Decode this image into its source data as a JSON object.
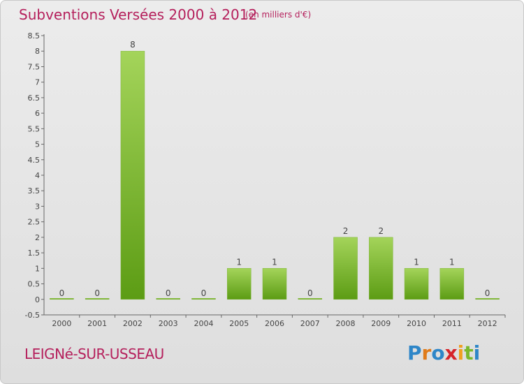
{
  "chart_data": {
    "type": "bar",
    "title": "Subventions Versées 2000 à 2012",
    "unit": "(en milliers d'€)",
    "categories": [
      "2000",
      "2001",
      "2002",
      "2003",
      "2004",
      "2005",
      "2006",
      "2007",
      "2008",
      "2009",
      "2010",
      "2011",
      "2012"
    ],
    "values": [
      0,
      0,
      8,
      0,
      0,
      1,
      1,
      0,
      2,
      2,
      1,
      1,
      0
    ],
    "data_labels": [
      "0",
      "0",
      "8",
      "0",
      "0",
      "1",
      "1",
      "0",
      "2",
      "2",
      "1",
      "1",
      "0"
    ],
    "y_ticks": [
      "-0.5",
      "0",
      "0.5",
      "1",
      "1.5",
      "2",
      "2.5",
      "3",
      "3.5",
      "4",
      "4.5",
      "5",
      "5.5",
      "6",
      "6.5",
      "7",
      "7.5",
      "8",
      "8.5"
    ],
    "ylim": [
      -0.5,
      8.5
    ],
    "grid": false,
    "bar_color_top": "#a4d45a",
    "bar_color_bottom": "#5c9c14"
  },
  "commune": "LEIGNé-SUR-USSEAU",
  "logo": {
    "letters": [
      "P",
      "r",
      "o",
      "x",
      "i",
      "t",
      "i"
    ],
    "colors": [
      "#2e86c8",
      "#e07b1a",
      "#2e86c8",
      "#d6242a",
      "#f0a020",
      "#7ab82c",
      "#2e86c8"
    ]
  }
}
